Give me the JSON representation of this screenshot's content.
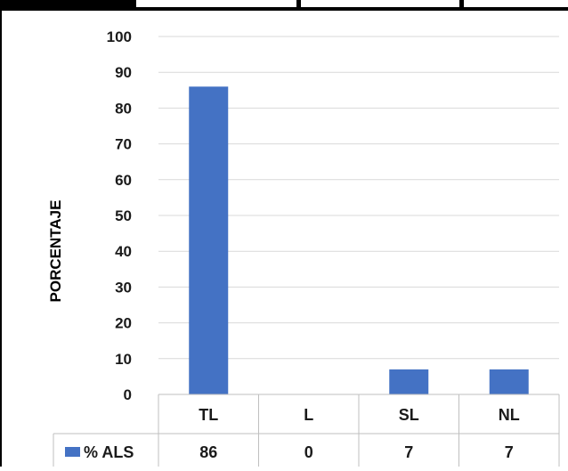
{
  "chart_data": {
    "type": "bar",
    "categories": [
      "TL",
      "L",
      "SL",
      "NL"
    ],
    "series": [
      {
        "name": "% ALS",
        "values": [
          86,
          0,
          7,
          7
        ],
        "color": "#4472C4"
      }
    ],
    "ylabel": "PORCENTAJE",
    "ylim": [
      0,
      100
    ],
    "yticks": [
      0,
      10,
      20,
      30,
      40,
      50,
      60,
      70,
      80,
      90,
      100
    ],
    "grid": true,
    "legend": "data-table-row"
  }
}
